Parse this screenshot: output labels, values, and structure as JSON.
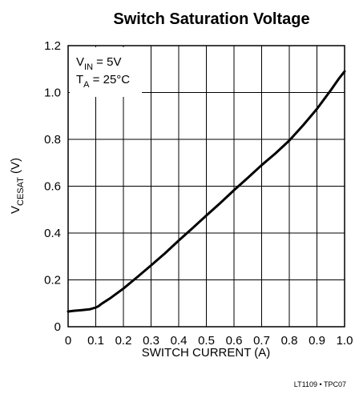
{
  "chart_data": {
    "type": "line",
    "title": "Switch Saturation Voltage",
    "xlabel": "SWITCH CURRENT (A)",
    "ylabel": {
      "main": "V",
      "sub": "CESAT",
      "unit": " (V)"
    },
    "xlim": [
      0,
      1.0
    ],
    "ylim": [
      0,
      1.2
    ],
    "x_ticks": [
      0,
      0.1,
      0.2,
      0.3,
      0.4,
      0.5,
      0.6,
      0.7,
      0.8,
      0.9,
      1.0
    ],
    "x_tick_labels": [
      "0",
      "0.1",
      "0.2",
      "0.3",
      "0.4",
      "0.5",
      "0.6",
      "0.7",
      "0.8",
      "0.9",
      "1.0"
    ],
    "y_ticks": [
      0,
      0.2,
      0.4,
      0.6,
      0.8,
      1.0,
      1.2
    ],
    "y_tick_labels": [
      "0",
      "0.2",
      "0.4",
      "0.6",
      "0.8",
      "1.0",
      "1.2"
    ],
    "grid": true,
    "annotations": [
      {
        "main": "V",
        "sub": "IN",
        "rest": " = 5V"
      },
      {
        "main": "T",
        "sub": "A",
        "rest": " = 25°C"
      }
    ],
    "footnote": "LT1109 • TPC07",
    "series": [
      {
        "x": [
          0.0,
          0.02,
          0.05,
          0.08,
          0.1,
          0.11,
          0.12,
          0.15,
          0.2,
          0.25,
          0.3,
          0.35,
          0.4,
          0.45,
          0.5,
          0.55,
          0.6,
          0.65,
          0.7,
          0.75,
          0.8,
          0.85,
          0.9,
          0.95,
          0.98,
          1.0
        ],
        "y": [
          0.065,
          0.068,
          0.071,
          0.075,
          0.082,
          0.088,
          0.097,
          0.12,
          0.163,
          0.212,
          0.262,
          0.313,
          0.368,
          0.421,
          0.475,
          0.528,
          0.583,
          0.636,
          0.69,
          0.74,
          0.795,
          0.86,
          0.93,
          1.01,
          1.06,
          1.09
        ]
      }
    ]
  }
}
